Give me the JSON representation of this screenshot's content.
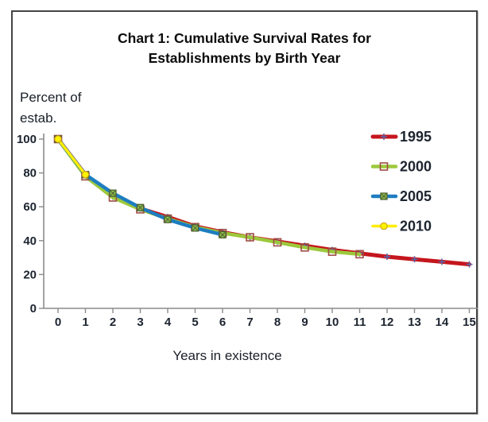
{
  "header": {
    "title_line1": "Chart 1: Cumulative Survival Rates for",
    "title_line2": "Establishments by Birth Year"
  },
  "y_axis": {
    "label_line1": "Percent of",
    "label_line2": "estab."
  },
  "x_axis": {
    "label": "Years in existence"
  },
  "colors": {
    "card_border": "#454545",
    "axis": "#8c8c8c",
    "text": "#1c2430"
  },
  "chart_data": {
    "type": "line",
    "title": "Chart 1: Cumulative Survival Rates for Establishments by Birth Year",
    "xlabel": "Years in existence",
    "ylabel": "Percent of estab.",
    "xlim": [
      0,
      15
    ],
    "ylim": [
      0,
      100
    ],
    "xticks": [
      0,
      1,
      2,
      3,
      4,
      5,
      6,
      7,
      8,
      9,
      10,
      11,
      12,
      13,
      14,
      15
    ],
    "yticks": [
      0,
      20,
      40,
      60,
      80,
      100
    ],
    "grid": false,
    "legend_position": "right",
    "x": [
      0,
      1,
      2,
      3,
      4,
      5,
      6,
      7,
      8,
      9,
      10,
      11,
      12,
      13,
      14,
      15
    ],
    "series": [
      {
        "name": "1995",
        "color": "#C5161D",
        "line_width": 5,
        "marker": "plus",
        "marker_color": "#5B63A5",
        "values": [
          100,
          79,
          66,
          59,
          54,
          48.5,
          45,
          42,
          39.5,
          37,
          34.5,
          32.5,
          30.5,
          29,
          27.5,
          26
        ]
      },
      {
        "name": "2000",
        "color": "#9CC93C",
        "line_width": 4.5,
        "marker": "square-open",
        "marker_color": "#9E4D44",
        "values": [
          100,
          78,
          65.5,
          58.5,
          53,
          48,
          44.5,
          42,
          39,
          36,
          33.5,
          32
        ]
      },
      {
        "name": "2005",
        "color": "#1E7DC0",
        "line_width": 4.5,
        "marker": "square-x",
        "marker_color": "#4C5F33",
        "marker_fill": "#8FBF49",
        "values": [
          100,
          79,
          68,
          59.5,
          52.5,
          47.5,
          43.5
        ]
      },
      {
        "name": "2010",
        "color": "#FFEE00",
        "line_width": 3.5,
        "marker": "circle",
        "marker_color": "#C9A21B",
        "marker_fill": "#FFF200",
        "values": [
          100,
          79
        ]
      }
    ]
  }
}
